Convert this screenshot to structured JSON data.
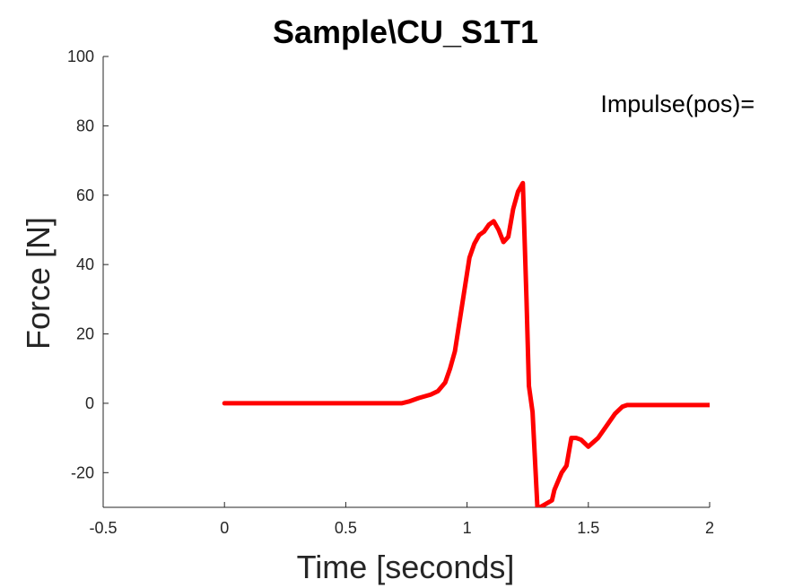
{
  "chart_data": {
    "type": "line",
    "title": "Sample\\CU_S1T1",
    "xlabel": "Time [seconds]",
    "ylabel": "Force [N]",
    "xlim": [
      -0.5,
      2
    ],
    "ylim": [
      -30,
      100
    ],
    "xticks": [
      -0.5,
      0,
      0.5,
      1,
      1.5,
      2
    ],
    "yticks": [
      -20,
      0,
      20,
      40,
      60,
      80,
      100
    ],
    "xtick_labels": [
      "-0.5",
      "0",
      "0.5",
      "1",
      "1.5",
      "2"
    ],
    "ytick_labels": [
      "-20",
      "0",
      "20",
      "40",
      "60",
      "80",
      "100"
    ],
    "grid": false,
    "annotation": {
      "text": "Impulse(pos)=",
      "x": 1.55,
      "y": 84
    },
    "series": [
      {
        "color": "#ff0000",
        "x": [
          0,
          0.2,
          0.5,
          0.73,
          0.76,
          0.8,
          0.85,
          0.88,
          0.91,
          0.93,
          0.95,
          0.97,
          0.99,
          1.01,
          1.03,
          1.05,
          1.07,
          1.09,
          1.11,
          1.13,
          1.15,
          1.17,
          1.19,
          1.21,
          1.23,
          1.245,
          1.255,
          1.27,
          1.29,
          1.3,
          1.3,
          1.35,
          1.36,
          1.39,
          1.41,
          1.43,
          1.45,
          1.47,
          1.5,
          1.54,
          1.57,
          1.61,
          1.64,
          1.66,
          1.7,
          2.0
        ],
        "y": [
          0,
          0,
          0,
          0,
          0.5,
          1.5,
          2.5,
          3.5,
          6,
          10,
          15,
          24,
          33,
          42,
          46,
          48.5,
          49.5,
          51.5,
          52.5,
          50,
          46.5,
          48,
          56,
          61,
          63.5,
          30,
          5,
          -2.5,
          -30,
          -30,
          -30,
          -28,
          -25,
          -20,
          -18,
          -10,
          -10,
          -10.5,
          -12.5,
          -10,
          -7,
          -3,
          -1,
          -0.5,
          -0.5,
          -0.5
        ]
      }
    ]
  }
}
